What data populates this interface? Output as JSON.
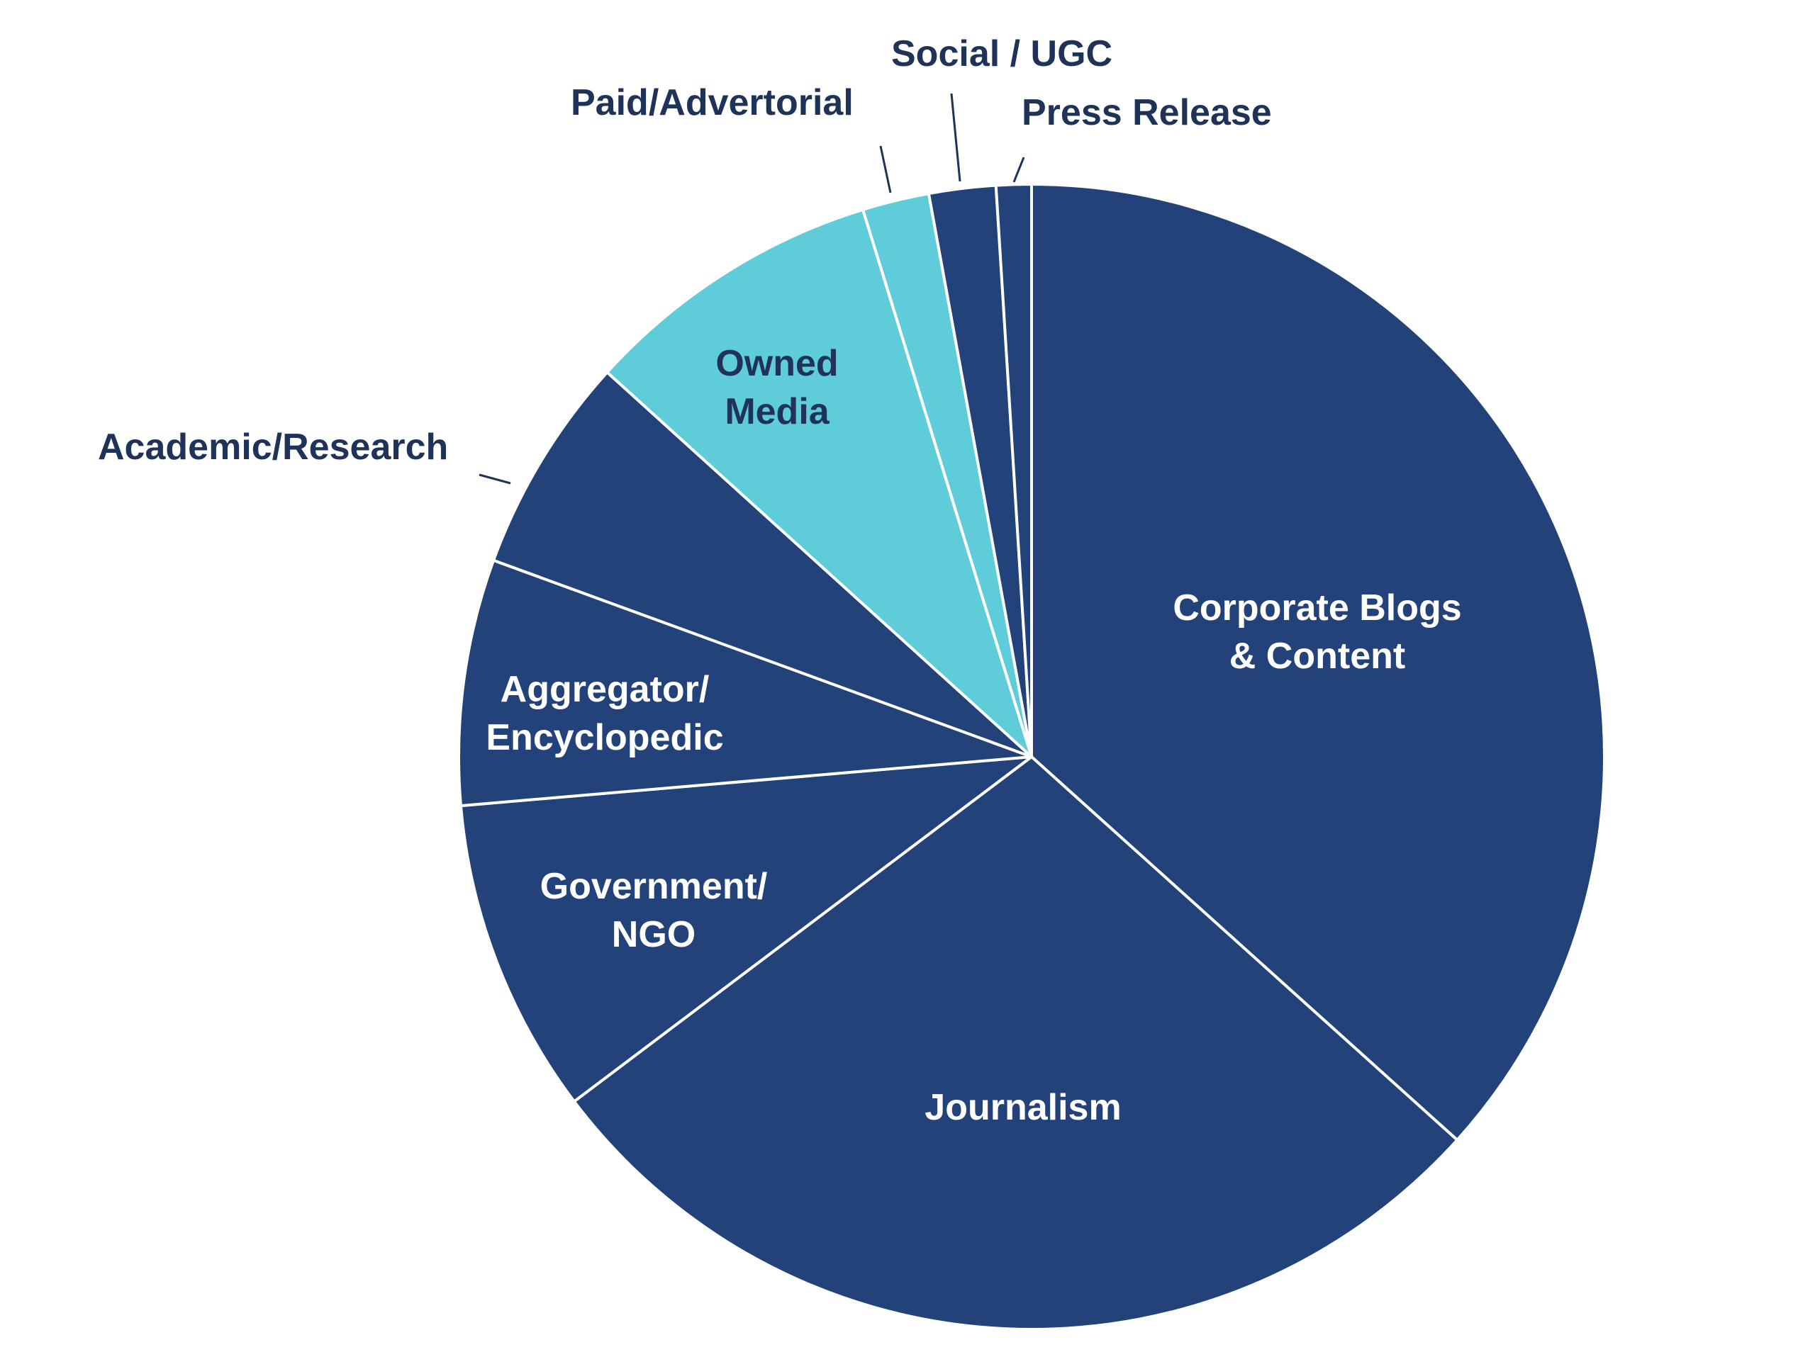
{
  "chart_data": {
    "type": "pie",
    "title": "",
    "start_angle_deg": 0,
    "direction": "clockwise",
    "colors": {
      "navy": "#23427a",
      "cyan": "#5ecdd9",
      "border": "#ffffff",
      "label_dark": "#1f3258",
      "label_light": "#ffffff",
      "leader": "#1f3258"
    },
    "slices": [
      {
        "name": "Corporate Blogs & Content",
        "lines": [
          "Corporate Blogs",
          "& Content"
        ],
        "value": 37.0,
        "color": "#23427a",
        "label_mode": "inside"
      },
      {
        "name": "Journalism",
        "lines": [
          "Journalism"
        ],
        "value": 28.3,
        "color": "#23427a",
        "label_mode": "inside"
      },
      {
        "name": "Government/NGO",
        "lines": [
          "Government/",
          "NGO"
        ],
        "value": 9.0,
        "color": "#23427a",
        "label_mode": "inside"
      },
      {
        "name": "Aggregator/Encyclopedic",
        "lines": [
          "Aggregator/",
          "Encyclopedic"
        ],
        "value": 7.0,
        "color": "#23427a",
        "label_mode": "inside"
      },
      {
        "name": "Academic/Research",
        "lines": [
          "Academic/Research"
        ],
        "value": 6.2,
        "color": "#23427a",
        "label_mode": "outside"
      },
      {
        "name": "Owned Media",
        "lines": [
          "Owned",
          "Media"
        ],
        "value": 8.6,
        "color": "#5ecdd9",
        "label_mode": "inside"
      },
      {
        "name": "Paid/Advertorial",
        "lines": [
          "Paid/Advertorial"
        ],
        "value": 1.9,
        "color": "#5ecdd9",
        "label_mode": "outside"
      },
      {
        "name": "Social / UGC",
        "lines": [
          "Social / UGC"
        ],
        "value": 1.9,
        "color": "#23427a",
        "label_mode": "outside"
      },
      {
        "name": "Press Release",
        "lines": [
          "Press Release"
        ],
        "value": 1.0,
        "color": "#23427a",
        "label_mode": "outside"
      }
    ]
  }
}
